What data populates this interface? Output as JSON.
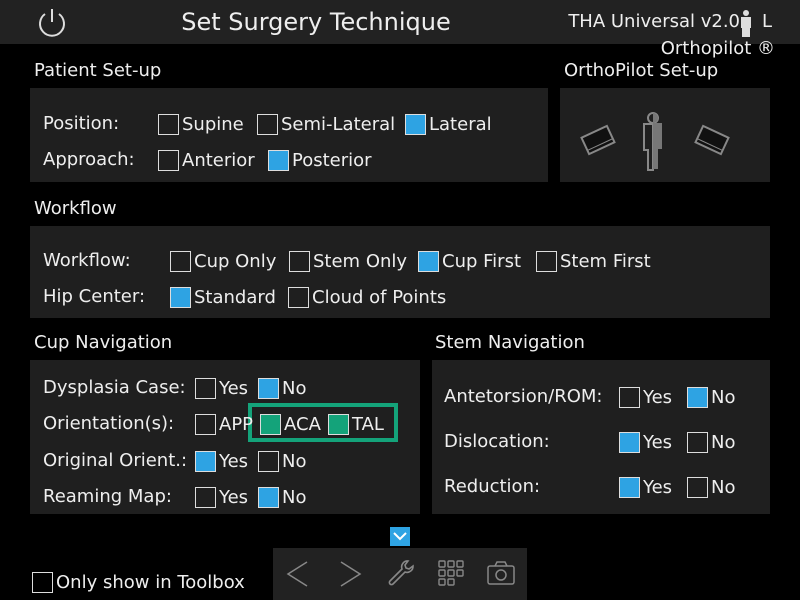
{
  "header": {
    "title": "Set Surgery Technique",
    "version": "THA Universal v2.0",
    "side": "L",
    "brand": "Orthopilot ®"
  },
  "patient": {
    "title": "Patient Set-up",
    "position": {
      "label": "Position:",
      "options": [
        {
          "label": "Supine",
          "checked": false
        },
        {
          "label": "Semi-Lateral",
          "checked": false
        },
        {
          "label": "Lateral",
          "checked": true
        }
      ]
    },
    "approach": {
      "label": "Approach:",
      "options": [
        {
          "label": "Anterior",
          "checked": false
        },
        {
          "label": "Posterior",
          "checked": true
        }
      ]
    }
  },
  "orthopilot": {
    "title": "OrthoPilot Set-up"
  },
  "workflow": {
    "title": "Workflow",
    "workflow": {
      "label": "Workflow:",
      "options": [
        {
          "label": "Cup Only",
          "checked": false
        },
        {
          "label": "Stem Only",
          "checked": false
        },
        {
          "label": "Cup First",
          "checked": true
        },
        {
          "label": "Stem First",
          "checked": false
        }
      ]
    },
    "hip": {
      "label": "Hip Center:",
      "options": [
        {
          "label": "Standard",
          "checked": true
        },
        {
          "label": "Cloud of Points",
          "checked": false
        }
      ]
    }
  },
  "cup": {
    "title": "Cup Navigation",
    "dysplasia": {
      "label": "Dysplasia Case:",
      "options": [
        {
          "label": "Yes",
          "checked": false
        },
        {
          "label": "No",
          "checked": true
        }
      ]
    },
    "orientation": {
      "label": "Orientation(s):",
      "options": [
        {
          "label": "APP",
          "checked": false
        },
        {
          "label": "ACA",
          "checked": true
        },
        {
          "label": "TAL",
          "checked": true
        }
      ]
    },
    "original": {
      "label": "Original Orient.:",
      "options": [
        {
          "label": "Yes",
          "checked": true
        },
        {
          "label": "No",
          "checked": false
        }
      ]
    },
    "reaming": {
      "label": "Reaming Map:",
      "options": [
        {
          "label": "Yes",
          "checked": false
        },
        {
          "label": "No",
          "checked": true
        }
      ]
    }
  },
  "stem": {
    "title": "Stem Navigation",
    "antetorsion": {
      "label": "Antetorsion/ROM:",
      "options": [
        {
          "label": "Yes",
          "checked": false
        },
        {
          "label": "No",
          "checked": true
        }
      ]
    },
    "dislocation": {
      "label": "Dislocation:",
      "options": [
        {
          "label": "Yes",
          "checked": true
        },
        {
          "label": "No",
          "checked": false
        }
      ]
    },
    "reduction": {
      "label": "Reduction:",
      "options": [
        {
          "label": "Yes",
          "checked": true
        },
        {
          "label": "No",
          "checked": false
        }
      ]
    }
  },
  "footer": {
    "toolbox_label": "Only show in Toolbox",
    "toolbox_checked": false
  },
  "colors": {
    "checked": "#2ea3e3",
    "highlight": "#14a37a",
    "panel": "#1f1f1f"
  }
}
